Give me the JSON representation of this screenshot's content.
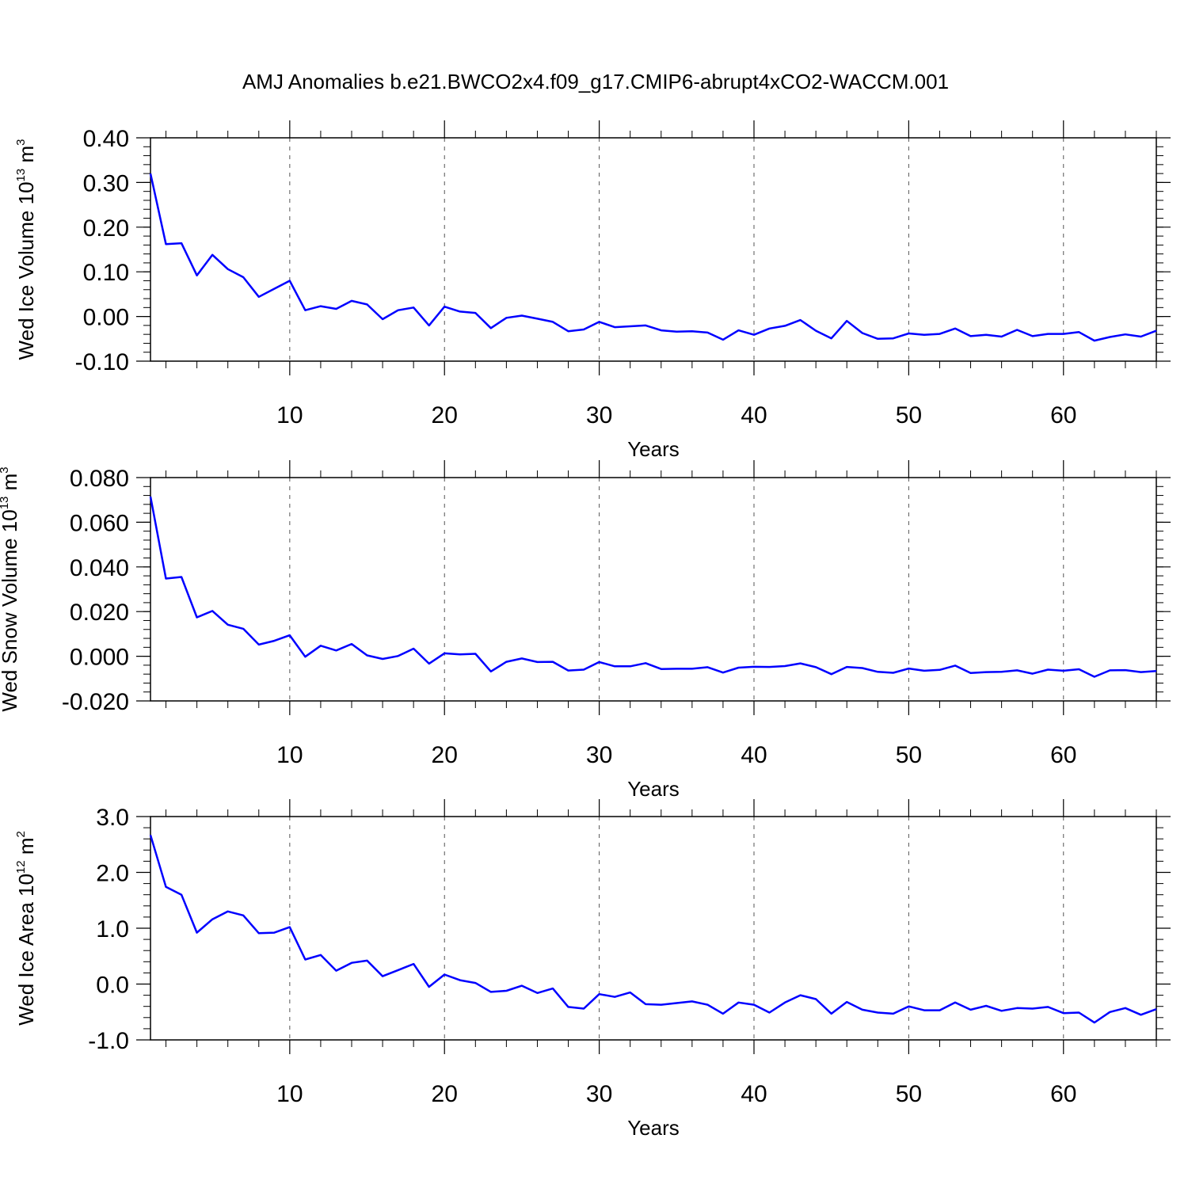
{
  "title": "AMJ Anomalies b.e21.BWCO2x4.f09_g17.CMIP6-abrupt4xCO2-WACCM.001",
  "line_color": "#0000ff",
  "chart_data": [
    {
      "type": "line",
      "xlabel": "Years",
      "ylabel": {
        "main": "Wed Ice Volume 10",
        "sup": "13",
        "unit": " m",
        "unit_sup": "3"
      },
      "xlim": [
        1,
        66
      ],
      "ylim": [
        -0.1,
        0.4
      ],
      "xticks": [
        10,
        20,
        30,
        40,
        50,
        60
      ],
      "yticks": [
        -0.1,
        0.0,
        0.1,
        0.2,
        0.3,
        0.4
      ],
      "ytick_labels": [
        "-0.10",
        "0.00",
        "0.10",
        "0.20",
        "0.30",
        "0.40"
      ],
      "ystep_minor": 0.02,
      "grid": "x-dashed",
      "series": [
        {
          "x": [
            1,
            2,
            3,
            4,
            5,
            6,
            7,
            8,
            9,
            10,
            11,
            12,
            13,
            14,
            15,
            16,
            17,
            18,
            19,
            20,
            21,
            22,
            23,
            24,
            25,
            26,
            27,
            28,
            29,
            30,
            31,
            32,
            33,
            34,
            35,
            36,
            37,
            38,
            39,
            40,
            41,
            42,
            43,
            44,
            45,
            46,
            47,
            48,
            49,
            50,
            51,
            52,
            53,
            54,
            55,
            56,
            57,
            58,
            59,
            60,
            61,
            62,
            63,
            64,
            65,
            66
          ],
          "values": [
            0.32,
            0.162,
            0.164,
            0.092,
            0.138,
            0.106,
            0.088,
            0.044,
            0.062,
            0.08,
            0.014,
            0.023,
            0.017,
            0.035,
            0.027,
            -0.006,
            0.014,
            0.02,
            -0.02,
            0.022,
            0.011,
            0.008,
            -0.026,
            -0.003,
            0.002,
            -0.005,
            -0.012,
            -0.033,
            -0.029,
            -0.012,
            -0.024,
            -0.022,
            -0.02,
            -0.031,
            -0.034,
            -0.033,
            -0.036,
            -0.052,
            -0.031,
            -0.041,
            -0.027,
            -0.021,
            -0.008,
            -0.032,
            -0.049,
            -0.01,
            -0.037,
            -0.05,
            -0.049,
            -0.038,
            -0.041,
            -0.039,
            -0.027,
            -0.044,
            -0.041,
            -0.045,
            -0.03,
            -0.044,
            -0.039,
            -0.039,
            -0.035,
            -0.054,
            -0.046,
            -0.04,
            -0.045,
            -0.032
          ]
        }
      ]
    },
    {
      "type": "line",
      "xlabel": "Years",
      "ylabel": {
        "main": "Wed Snow Volume 10",
        "sup": "13",
        "unit": " m",
        "unit_sup": "3"
      },
      "xlim": [
        1,
        66
      ],
      "ylim": [
        -0.02,
        0.08
      ],
      "xticks": [
        10,
        20,
        30,
        40,
        50,
        60
      ],
      "yticks": [
        -0.02,
        0.0,
        0.02,
        0.04,
        0.06,
        0.08
      ],
      "ytick_labels": [
        "-0.020",
        "0.000",
        "0.020",
        "0.040",
        "0.060",
        "0.080"
      ],
      "ystep_minor": 0.004,
      "grid": "x-dashed",
      "series": [
        {
          "x": [
            1,
            2,
            3,
            4,
            5,
            6,
            7,
            8,
            9,
            10,
            11,
            12,
            13,
            14,
            15,
            16,
            17,
            18,
            19,
            20,
            21,
            22,
            23,
            24,
            25,
            26,
            27,
            28,
            29,
            30,
            31,
            32,
            33,
            34,
            35,
            36,
            37,
            38,
            39,
            40,
            41,
            42,
            43,
            44,
            45,
            46,
            47,
            48,
            49,
            50,
            51,
            52,
            53,
            54,
            55,
            56,
            57,
            58,
            59,
            60,
            61,
            62,
            63,
            64,
            65,
            66
          ],
          "values": [
            0.0715,
            0.0348,
            0.0355,
            0.0174,
            0.0203,
            0.0141,
            0.0123,
            0.0052,
            0.0069,
            0.0094,
            -0.0002,
            0.0047,
            0.0026,
            0.0055,
            0.0004,
            -0.0012,
            0.0001,
            0.0034,
            -0.0033,
            0.0013,
            0.0008,
            0.0011,
            -0.0068,
            -0.0025,
            -0.001,
            -0.0026,
            -0.0025,
            -0.0064,
            -0.006,
            -0.0026,
            -0.0045,
            -0.0045,
            -0.0031,
            -0.0057,
            -0.0056,
            -0.0056,
            -0.0049,
            -0.0073,
            -0.0051,
            -0.0047,
            -0.0048,
            -0.0044,
            -0.0032,
            -0.0049,
            -0.008,
            -0.0048,
            -0.0053,
            -0.007,
            -0.0074,
            -0.0055,
            -0.0065,
            -0.0061,
            -0.0042,
            -0.0075,
            -0.0071,
            -0.007,
            -0.0063,
            -0.0078,
            -0.006,
            -0.0065,
            -0.0058,
            -0.0092,
            -0.0063,
            -0.0062,
            -0.0071,
            -0.0066
          ]
        }
      ]
    },
    {
      "type": "line",
      "xlabel": "Years",
      "ylabel": {
        "main": "Wed Ice Area 10",
        "sup": "12",
        "unit": " m",
        "unit_sup": "2"
      },
      "xlim": [
        1,
        66
      ],
      "ylim": [
        -1.0,
        3.0
      ],
      "xticks": [
        10,
        20,
        30,
        40,
        50,
        60
      ],
      "yticks": [
        -1.0,
        0.0,
        1.0,
        2.0,
        3.0
      ],
      "ytick_labels": [
        "-1.0",
        "0.0",
        "1.0",
        "2.0",
        "3.0"
      ],
      "ystep_minor": 0.2,
      "grid": "x-dashed",
      "series": [
        {
          "x": [
            1,
            2,
            3,
            4,
            5,
            6,
            7,
            8,
            9,
            10,
            11,
            12,
            13,
            14,
            15,
            16,
            17,
            18,
            19,
            20,
            21,
            22,
            23,
            24,
            25,
            26,
            27,
            28,
            29,
            30,
            31,
            32,
            33,
            34,
            35,
            36,
            37,
            38,
            39,
            40,
            41,
            42,
            43,
            44,
            45,
            46,
            47,
            48,
            49,
            50,
            51,
            52,
            53,
            54,
            55,
            56,
            57,
            58,
            59,
            60,
            61,
            62,
            63,
            64,
            65,
            66
          ],
          "values": [
            2.67,
            1.74,
            1.6,
            0.92,
            1.16,
            1.3,
            1.23,
            0.91,
            0.92,
            1.02,
            0.44,
            0.52,
            0.24,
            0.38,
            0.42,
            0.14,
            0.25,
            0.36,
            -0.05,
            0.17,
            0.07,
            0.02,
            -0.14,
            -0.12,
            -0.03,
            -0.16,
            -0.08,
            -0.41,
            -0.44,
            -0.18,
            -0.23,
            -0.15,
            -0.36,
            -0.37,
            -0.34,
            -0.31,
            -0.37,
            -0.53,
            -0.33,
            -0.37,
            -0.51,
            -0.33,
            -0.2,
            -0.27,
            -0.53,
            -0.32,
            -0.46,
            -0.51,
            -0.53,
            -0.4,
            -0.47,
            -0.47,
            -0.33,
            -0.46,
            -0.39,
            -0.48,
            -0.43,
            -0.44,
            -0.41,
            -0.52,
            -0.51,
            -0.69,
            -0.5,
            -0.43,
            -0.55,
            -0.45
          ]
        }
      ]
    }
  ]
}
